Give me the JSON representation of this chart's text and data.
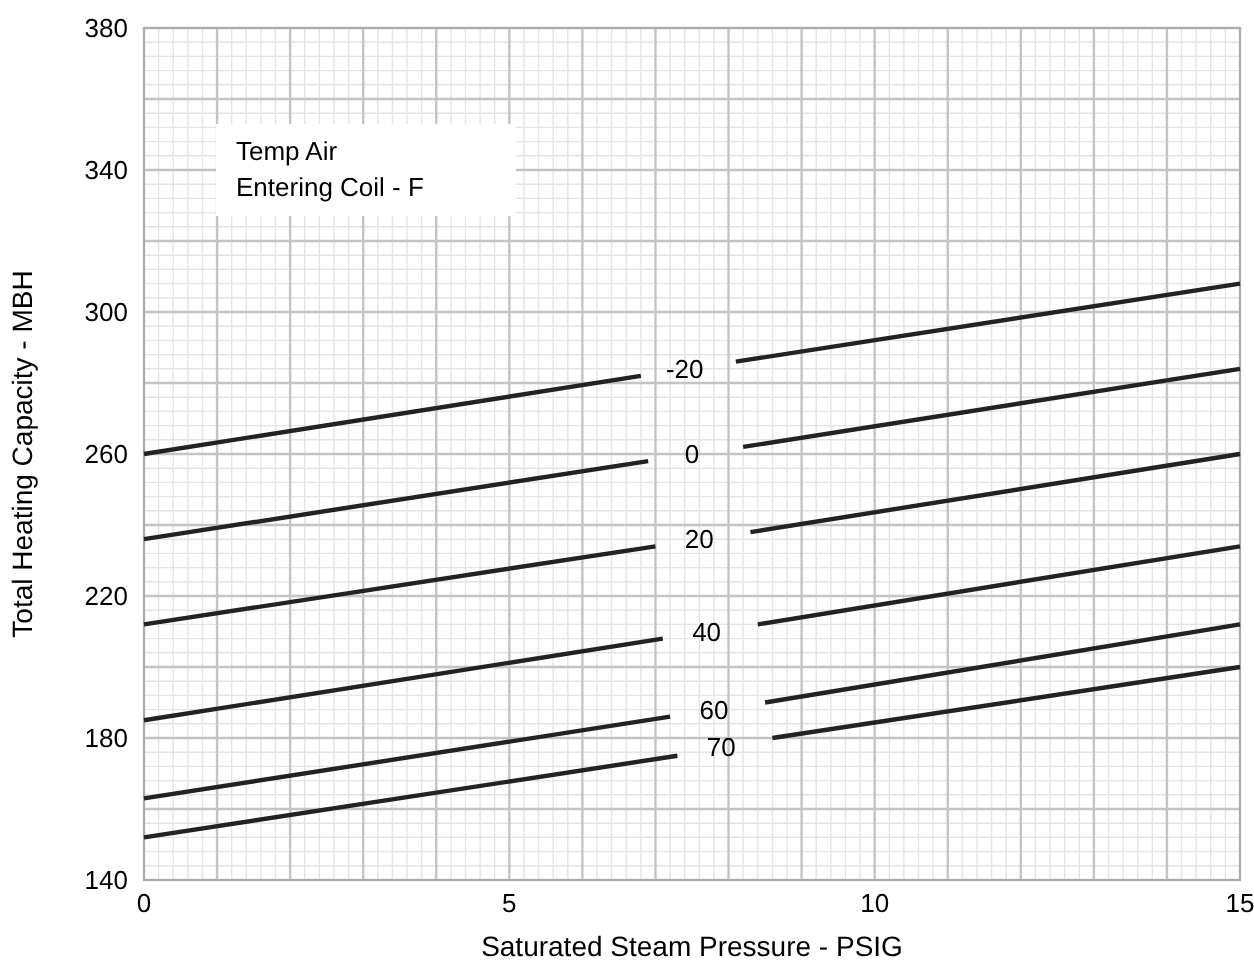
{
  "chart_data": {
    "type": "line",
    "xlabel": "Saturated Steam Pressure - PSIG",
    "ylabel": "Total Heating Capacity - MBH",
    "annotations": [
      "Temp Air\nEntering Coil - F"
    ],
    "xlim": [
      0,
      15
    ],
    "ylim": [
      140,
      380
    ],
    "xticks": [
      0,
      {
        "value": 1,
        "label": null
      },
      {
        "value": 2,
        "label": null
      },
      {
        "value": 3,
        "label": null
      },
      {
        "value": 4,
        "label": null
      },
      5,
      {
        "value": 6,
        "label": null
      },
      {
        "value": 7,
        "label": null
      },
      {
        "value": 8,
        "label": null
      },
      {
        "value": 9,
        "label": null
      },
      10,
      {
        "value": 11,
        "label": null
      },
      {
        "value": 12,
        "label": null
      },
      {
        "value": 13,
        "label": null
      },
      {
        "value": 14,
        "label": null
      },
      15
    ],
    "yticks": [
      140,
      {
        "value": 160,
        "label": null
      },
      180,
      {
        "value": 200,
        "label": null
      },
      220,
      {
        "value": 240,
        "label": null
      },
      260,
      {
        "value": 280,
        "label": null
      },
      300,
      {
        "value": 320,
        "label": null
      },
      340,
      {
        "value": 360,
        "label": null
      },
      380
    ],
    "grid": true,
    "marker": "none",
    "line_style": "solid",
    "series": [
      {
        "name": "-20",
        "color": "#222222",
        "x": [
          0,
          6.8,
          7.4,
          8.1,
          15
        ],
        "values": [
          260,
          282,
          null,
          286,
          308
        ]
      },
      {
        "name": "0",
        "color": "#222222",
        "x": [
          0,
          6.9,
          7.5,
          8.2,
          15
        ],
        "values": [
          236,
          258,
          null,
          262,
          284
        ]
      },
      {
        "name": "20",
        "color": "#222222",
        "x": [
          0,
          7,
          7.6,
          8.3,
          15
        ],
        "values": [
          212,
          234,
          null,
          238,
          260
        ]
      },
      {
        "name": "40",
        "color": "#222222",
        "x": [
          0,
          7.1,
          7.7,
          8.4,
          15
        ],
        "values": [
          185,
          208,
          null,
          212,
          234
        ]
      },
      {
        "name": "60",
        "color": "#222222",
        "x": [
          0,
          7.2,
          7.8,
          8.5,
          15
        ],
        "values": [
          163,
          186,
          null,
          190,
          212
        ]
      },
      {
        "name": "70",
        "color": "#222222",
        "x": [
          0,
          7.3,
          7.9,
          8.6,
          15
        ],
        "values": [
          152,
          175,
          null,
          180,
          200
        ]
      }
    ]
  }
}
